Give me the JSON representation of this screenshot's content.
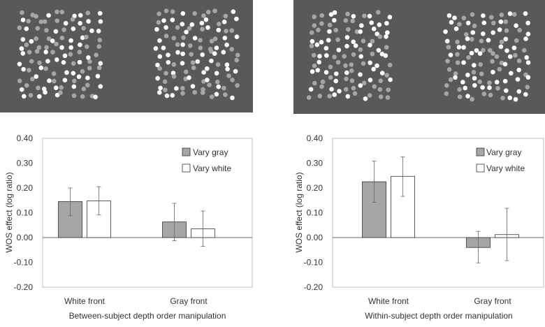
{
  "colors": {
    "stimulus_bg": "#595959",
    "dot_white": "#ffffff",
    "dot_gray": "#a6a6a6",
    "bar_gray": "#a6a6a6",
    "bar_white": "#ffffff",
    "axis": "#bfbfbf",
    "text": "#333333"
  },
  "chart_data": [
    {
      "type": "bar",
      "panel": "left",
      "title": "",
      "xlabel": "Between-subject depth order manipulation",
      "ylabel": "WOS effect (log ratio)",
      "ylim": [
        -0.2,
        0.4
      ],
      "yticks": [
        0.4,
        0.3,
        0.2,
        0.1,
        0.0,
        -0.1,
        -0.2
      ],
      "ytick_labels": [
        "0.40",
        "0.30",
        "0.20",
        "0.10",
        "0.00",
        "-0.10",
        "-0.20"
      ],
      "categories": [
        "White front",
        "Gray front"
      ],
      "legend_placement": "top-right",
      "series": [
        {
          "name": "Vary gray",
          "values": [
            0.145,
            0.063
          ],
          "err_low": [
            0.088,
            -0.013
          ],
          "err_high": [
            0.2,
            0.138
          ]
        },
        {
          "name": "Vary white",
          "values": [
            0.148,
            0.035
          ],
          "err_low": [
            0.091,
            -0.035
          ],
          "err_high": [
            0.205,
            0.107
          ]
        }
      ]
    },
    {
      "type": "bar",
      "panel": "right",
      "title": "",
      "xlabel": "Within-subject depth order manipulation",
      "ylabel": "WOS effect (log ratio)",
      "ylim": [
        -0.2,
        0.4
      ],
      "yticks": [
        0.4,
        0.3,
        0.2,
        0.1,
        0.0,
        -0.1,
        -0.2
      ],
      "ytick_labels": [
        "0.40",
        "0.30",
        "0.20",
        "0.10",
        "0.00",
        "-0.10",
        "-0.20"
      ],
      "categories": [
        "White front",
        "Gray front"
      ],
      "legend_placement": "top-right",
      "series": [
        {
          "name": "Vary gray",
          "values": [
            0.225,
            -0.04
          ],
          "err_low": [
            0.142,
            -0.102
          ],
          "err_high": [
            0.308,
            0.025
          ]
        },
        {
          "name": "Vary white",
          "values": [
            0.247,
            0.012
          ],
          "err_low": [
            0.166,
            -0.093
          ],
          "err_high": [
            0.325,
            0.118
          ]
        }
      ]
    }
  ]
}
